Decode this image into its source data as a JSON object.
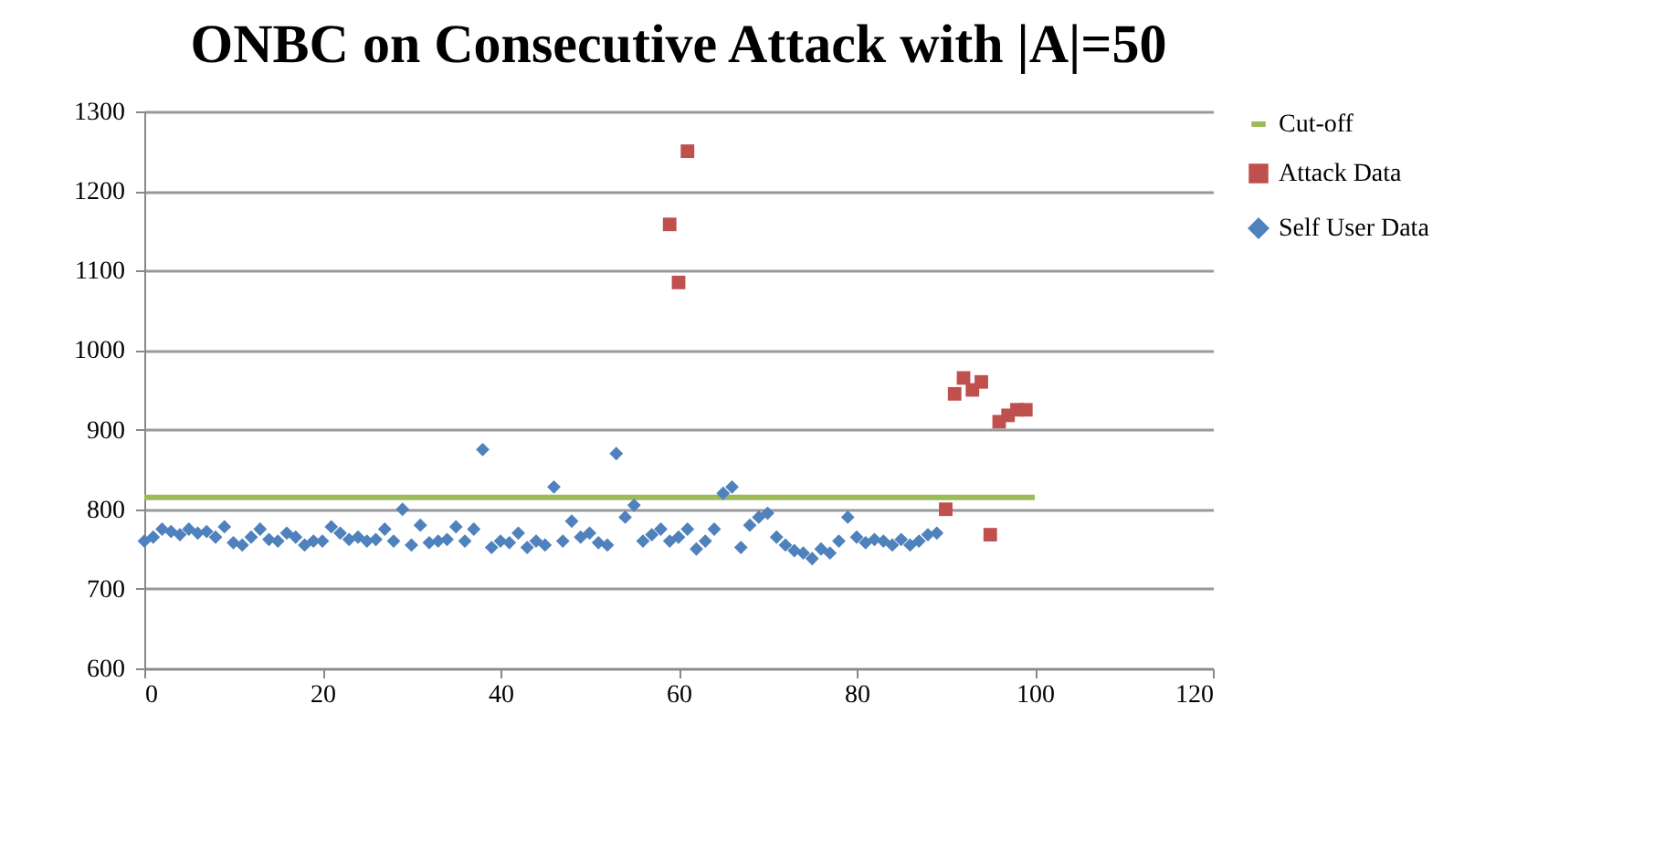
{
  "chart_data": {
    "type": "scatter",
    "title": "ONBC on Consecutive Attack with |A|=50",
    "xlim": [
      0,
      120
    ],
    "xticks": [
      0,
      20,
      40,
      60,
      80,
      100,
      120
    ],
    "ylim": [
      600,
      1300
    ],
    "yticks": [
      600,
      700,
      800,
      900,
      1000,
      1100,
      1200,
      1300
    ],
    "grid": "y",
    "legend": "right",
    "series": [
      {
        "name": "Cut-off",
        "type": "line",
        "color": "#9bbb59",
        "marker": "none",
        "x": [
          0,
          100
        ],
        "values": [
          815,
          815
        ]
      },
      {
        "name": "Attack Data",
        "color": "#c0504d",
        "marker": "square",
        "x": [
          59,
          60,
          61,
          90,
          91,
          92,
          93,
          94,
          95,
          96,
          97,
          98,
          99
        ],
        "values": [
          1158,
          1085,
          1250,
          800,
          945,
          965,
          950,
          960,
          768,
          910,
          918,
          925,
          925
        ]
      },
      {
        "name": "Self User Data",
        "color": "#4f81bd",
        "marker": "diamond",
        "x": [
          0,
          1,
          2,
          3,
          4,
          5,
          6,
          7,
          8,
          9,
          10,
          11,
          12,
          13,
          14,
          15,
          16,
          17,
          18,
          19,
          20,
          21,
          22,
          23,
          24,
          25,
          26,
          27,
          28,
          29,
          30,
          31,
          32,
          33,
          34,
          35,
          36,
          37,
          38,
          39,
          40,
          41,
          42,
          43,
          44,
          45,
          46,
          47,
          48,
          49,
          50,
          51,
          52,
          53,
          54,
          55,
          56,
          57,
          58,
          59,
          60,
          61,
          62,
          63,
          64,
          65,
          66,
          67,
          68,
          69,
          70,
          71,
          72,
          73,
          74,
          75,
          76,
          77,
          78,
          79,
          80,
          81,
          82,
          83,
          84,
          85,
          86,
          87,
          88,
          89
        ],
        "values": [
          760,
          765,
          775,
          772,
          768,
          775,
          770,
          772,
          765,
          778,
          758,
          755,
          765,
          775,
          762,
          760,
          770,
          765,
          755,
          760,
          760,
          778,
          770,
          762,
          765,
          760,
          762,
          775,
          760,
          800,
          755,
          780,
          758,
          760,
          762,
          778,
          760,
          775,
          875,
          752,
          760,
          758,
          770,
          752,
          760,
          755,
          828,
          760,
          785,
          765,
          770,
          758,
          755,
          870,
          790,
          805,
          760,
          768,
          775,
          760,
          765,
          775,
          750,
          760,
          775,
          820,
          828,
          752,
          780,
          790,
          795,
          765,
          755,
          748,
          745,
          738,
          750,
          745,
          760,
          790,
          765,
          758,
          762,
          760,
          755,
          762,
          755,
          760,
          768,
          770
        ]
      }
    ]
  }
}
